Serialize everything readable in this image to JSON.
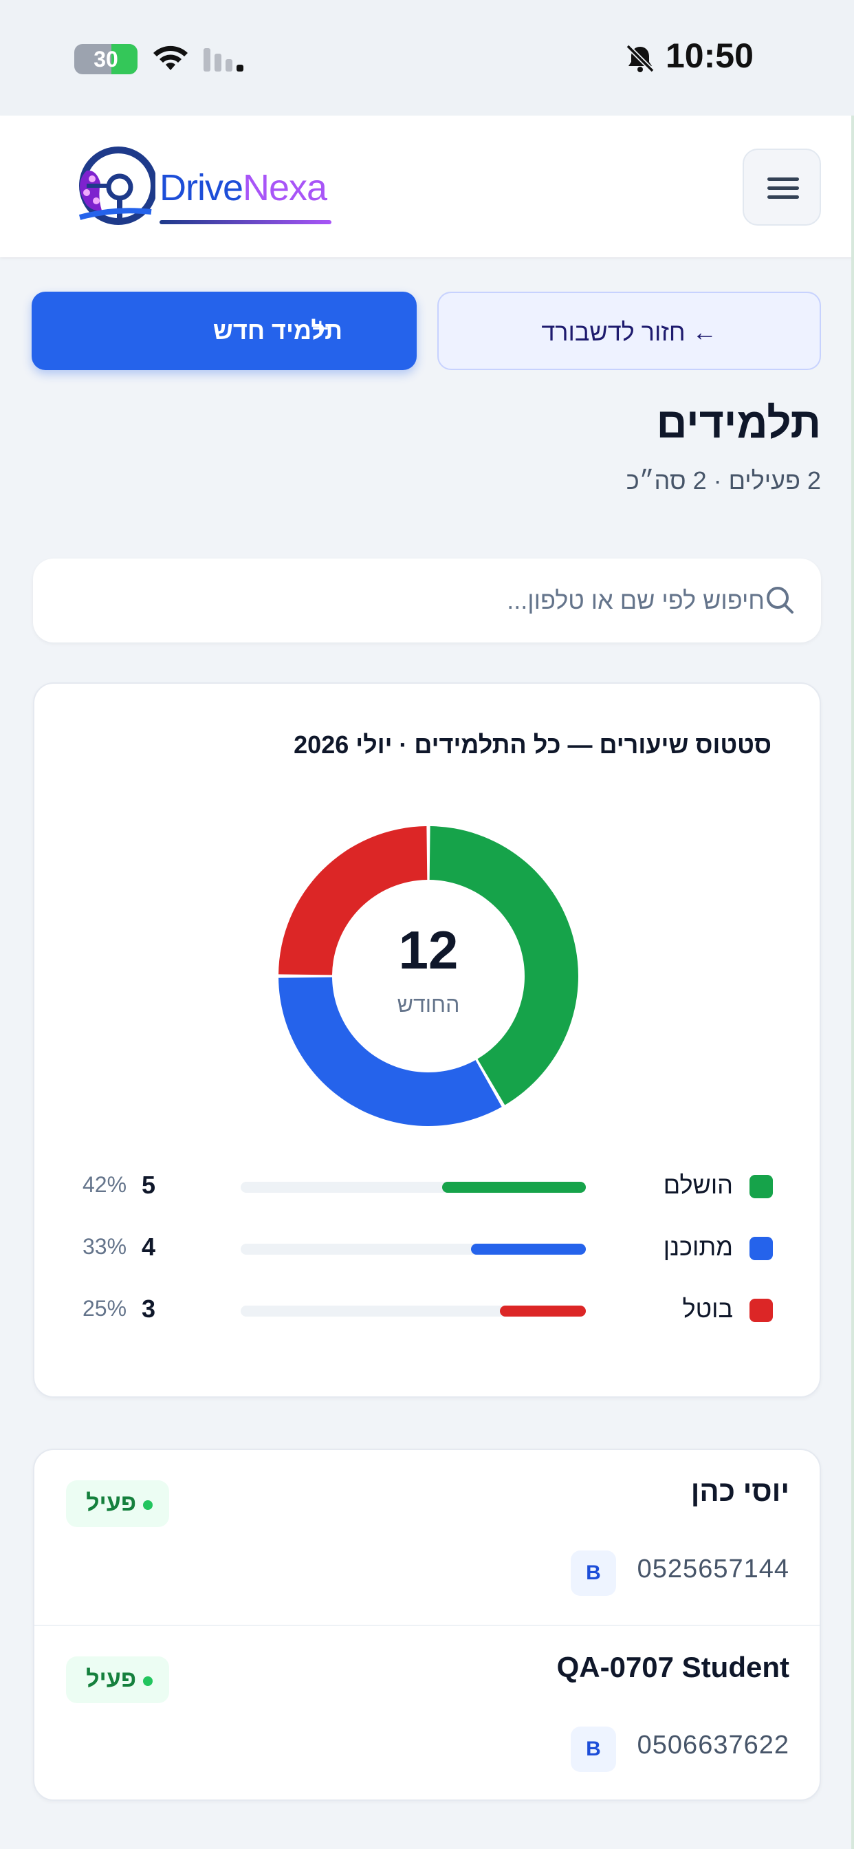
{
  "status_bar": {
    "time": "10:50",
    "battery_level": "30",
    "icons": [
      "bell-off-icon",
      "battery-charging-icon",
      "wifi-icon",
      "cellular-signal-icon"
    ]
  },
  "header": {
    "logo_text_1": "Drive",
    "logo_text_2": "Nexa",
    "menu_icon": "hamburger-menu-icon"
  },
  "actions": {
    "new_student_label": "תלמיד חדש",
    "new_student_icon": "plus-icon",
    "back_label": "← חזור לדשבורד"
  },
  "page": {
    "title": "תלמידים",
    "subtitle": "2 פעילים · 2 סה״כ"
  },
  "search": {
    "placeholder": "חיפוש לפי שם או טלפון...",
    "value": ""
  },
  "colors": {
    "accent": "#2563eb",
    "completed": "#16a34a",
    "scheduled": "#2563eb",
    "cancelled": "#dc2626",
    "active": "#22c55e"
  },
  "chart_data": {
    "type": "pie",
    "title": "סטטוס שיעורים — כל התלמידים · יולי 2026",
    "center_value": "12",
    "center_label": "החודש",
    "legend": "bottom",
    "series": [
      {
        "label": "הושלם",
        "value": 5,
        "percent": "42%",
        "color": "#16a34a"
      },
      {
        "label": "מתוכנן",
        "value": 4,
        "percent": "33%",
        "color": "#2563eb"
      },
      {
        "label": "בוטל",
        "value": 3,
        "percent": "25%",
        "color": "#dc2626"
      }
    ]
  },
  "students": [
    {
      "name": "יוסי כהן",
      "phone": "0525657144",
      "license_class": "B",
      "status": "פעיל"
    },
    {
      "name": "QA-0707 Student",
      "phone": "0506637622",
      "license_class": "B",
      "status": "פעיל"
    }
  ]
}
